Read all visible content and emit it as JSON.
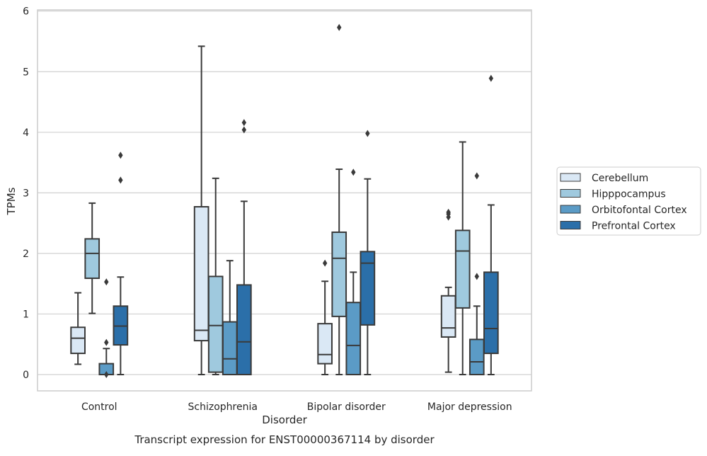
{
  "chart_data": {
    "type": "box",
    "xlabel": "Disorder",
    "ylabel": "TPMs",
    "caption": "Transcript expression for ENST00000367114 by disorder",
    "ylim": [
      -0.27,
      6.02
    ],
    "yticks": [
      0,
      1,
      2,
      3,
      4,
      5,
      6
    ],
    "grid": "horizontal",
    "legend_position": "right",
    "categories": [
      "Control",
      "Schizophrenia",
      "Bipolar disorder",
      "Major depression"
    ],
    "series": [
      {
        "name": "Cerebellum",
        "color": "#dae8f5",
        "boxes": [
          {
            "whislo": 0.17,
            "q1": 0.35,
            "med": 0.6,
            "q3": 0.78,
            "whishi": 1.35,
            "fliers": []
          },
          {
            "whislo": 0.0,
            "q1": 0.56,
            "med": 0.73,
            "q3": 2.77,
            "whishi": 5.42,
            "fliers": []
          },
          {
            "whislo": 0.0,
            "q1": 0.18,
            "med": 0.33,
            "q3": 0.84,
            "whishi": 1.54,
            "fliers": [
              1.84
            ]
          },
          {
            "whislo": 0.04,
            "q1": 0.62,
            "med": 0.77,
            "q3": 1.3,
            "whishi": 1.44,
            "fliers": [
              2.6,
              2.65,
              2.68
            ]
          }
        ]
      },
      {
        "name": "Hipppocampus",
        "color": "#9fc9de",
        "boxes": [
          {
            "whislo": 1.01,
            "q1": 1.59,
            "med": 2.0,
            "q3": 2.24,
            "whishi": 2.83,
            "fliers": []
          },
          {
            "whislo": 0.0,
            "q1": 0.04,
            "med": 0.81,
            "q3": 1.62,
            "whishi": 3.24,
            "fliers": []
          },
          {
            "whislo": 0.0,
            "q1": 0.96,
            "med": 1.92,
            "q3": 2.35,
            "whishi": 3.39,
            "fliers": [
              5.73
            ]
          },
          {
            "whislo": 0.0,
            "q1": 1.1,
            "med": 2.04,
            "q3": 2.38,
            "whishi": 3.84,
            "fliers": []
          }
        ]
      },
      {
        "name": "Orbitofontal Cortex",
        "color": "#5b9bc6",
        "boxes": [
          {
            "whislo": 0.0,
            "q1": 0.0,
            "med": 0.0,
            "q3": 0.18,
            "whishi": 0.43,
            "fliers": [
              0.0,
              0.53,
              1.53
            ]
          },
          {
            "whislo": 0.0,
            "q1": 0.0,
            "med": 0.26,
            "q3": 0.87,
            "whishi": 1.88,
            "fliers": []
          },
          {
            "whislo": 0.0,
            "q1": 0.0,
            "med": 0.48,
            "q3": 1.19,
            "whishi": 1.69,
            "fliers": [
              3.34
            ]
          },
          {
            "whislo": 0.0,
            "q1": 0.0,
            "med": 0.21,
            "q3": 0.58,
            "whishi": 1.13,
            "fliers": [
              1.62,
              3.28
            ]
          }
        ]
      },
      {
        "name": "Prefrontal Cortex",
        "color": "#2b6fa9",
        "boxes": [
          {
            "whislo": 0.0,
            "q1": 0.49,
            "med": 0.8,
            "q3": 1.13,
            "whishi": 1.61,
            "fliers": [
              3.21,
              3.62
            ]
          },
          {
            "whislo": 0.0,
            "q1": 0.0,
            "med": 0.54,
            "q3": 1.48,
            "whishi": 2.86,
            "fliers": [
              4.04,
              4.16
            ]
          },
          {
            "whislo": 0.0,
            "q1": 0.82,
            "med": 1.84,
            "q3": 2.03,
            "whishi": 3.23,
            "fliers": [
              3.98
            ]
          },
          {
            "whislo": 0.0,
            "q1": 0.35,
            "med": 0.76,
            "q3": 1.69,
            "whishi": 2.8,
            "fliers": [
              4.89
            ]
          }
        ]
      }
    ]
  }
}
